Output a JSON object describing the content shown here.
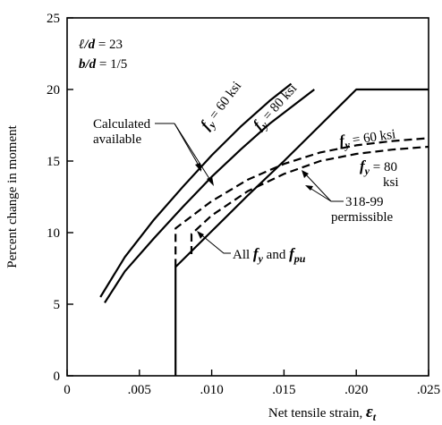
{
  "chart_data": {
    "type": "line",
    "xlabel": "Net tensile strain, ",
    "xlabel_symbol": "ε",
    "xlabel_sub": "t",
    "ylabel": "Percent change in moment",
    "xlim": [
      0,
      0.025
    ],
    "ylim": [
      0,
      25
    ],
    "grid": false,
    "x_ticks": [
      {
        "v": 0,
        "label": "0"
      },
      {
        "v": 0.005,
        "label": ".005"
      },
      {
        "v": 0.01,
        "label": ".010"
      },
      {
        "v": 0.015,
        "label": ".015"
      },
      {
        "v": 0.02,
        "label": ".020"
      },
      {
        "v": 0.025,
        "label": ".025"
      }
    ],
    "y_ticks": [
      {
        "v": 0,
        "label": "0"
      },
      {
        "v": 5,
        "label": "5"
      },
      {
        "v": 10,
        "label": "10"
      },
      {
        "v": 15,
        "label": "15"
      },
      {
        "v": 20,
        "label": "20"
      },
      {
        "v": 25,
        "label": "25"
      }
    ],
    "params": {
      "line1_a": "ℓ/d",
      "line1_b": " = 23",
      "line2_a": "b/d",
      "line2_b": " = 1/5"
    },
    "series": [
      {
        "key": "calc60",
        "style": "solid",
        "x": [
          0.0023,
          0.004,
          0.006,
          0.008,
          0.01,
          0.012,
          0.014,
          0.0155
        ],
        "y": [
          5.5,
          8.3,
          10.9,
          13.2,
          15.4,
          17.4,
          19.2,
          20.4
        ]
      },
      {
        "key": "calc80",
        "style": "solid",
        "x": [
          0.0026,
          0.004,
          0.006,
          0.008,
          0.01,
          0.012,
          0.014,
          0.0171
        ],
        "y": [
          5.1,
          7.3,
          9.6,
          11.8,
          13.9,
          15.8,
          17.6,
          20.0
        ]
      },
      {
        "key": "allfy",
        "style": "solid",
        "x": [
          0.0075,
          0.0075,
          0.01,
          0.0125,
          0.015,
          0.0175,
          0.02,
          0.025
        ],
        "y": [
          0,
          7.6,
          10.1,
          12.6,
          15.0,
          17.5,
          20.0,
          20.0
        ]
      },
      {
        "key": "perm60",
        "style": "dashed",
        "x": [
          0.0075,
          0.0075,
          0.01,
          0.0125,
          0.015,
          0.0175,
          0.02,
          0.0225,
          0.025
        ],
        "y": [
          7.6,
          10.3,
          12.2,
          13.7,
          14.8,
          15.6,
          16.1,
          16.4,
          16.6
        ]
      },
      {
        "key": "perm80",
        "style": "dashed",
        "x": [
          0.0086,
          0.0086,
          0.01,
          0.0125,
          0.015,
          0.0175,
          0.02,
          0.0225,
          0.025
        ],
        "y": [
          8.5,
          9.9,
          11.2,
          12.9,
          14.1,
          15.0,
          15.5,
          15.8,
          16.0
        ]
      }
    ],
    "annotations": {
      "calc_line1": "Calculated",
      "calc_line2": "available",
      "fy": "f",
      "fy_sub": "y",
      "fy60_val": " = 60 ksi",
      "fy80_val": " = 80 ksi",
      "perm60_val": " = 60 ksi",
      "perm80_eq": " = 80",
      "perm80_unit": "ksi",
      "code_line1": "318-99",
      "code_line2": "permissible",
      "all_prefix": "All ",
      "all_and": " and ",
      "fpu": "f",
      "fpu_sub": "pu"
    }
  }
}
